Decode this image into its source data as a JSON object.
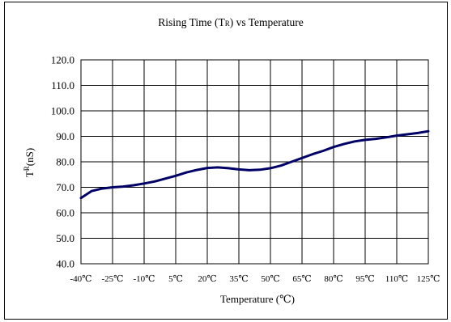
{
  "chart_data": {
    "type": "line",
    "title": "Rising Time (TR) vs Temperature",
    "title_parts": {
      "before": "Rising Time (T",
      "sub": "R",
      "after": ") vs Temperature"
    },
    "xlabel": "Temperature (℃)",
    "ylabel": "TR(nS)",
    "ylabel_parts": {
      "before": "T",
      "sup": "R",
      "after": "(nS)"
    },
    "x_categories": [
      "-40℃",
      "-25℃",
      "-10℃",
      "5℃",
      "20℃",
      "35℃",
      "50℃",
      "65℃",
      "80℃",
      "95℃",
      "110℃",
      "125℃"
    ],
    "xlim": [
      -40,
      125
    ],
    "ylim": [
      40,
      120
    ],
    "y_ticks": [
      "40.0",
      "50.0",
      "60.0",
      "70.0",
      "80.0",
      "90.0",
      "100.0",
      "110.0",
      "120.0"
    ],
    "grid": true,
    "series": [
      {
        "color": "#000066",
        "x": [
          -40,
          -35,
          -30,
          -25,
          -20,
          -15,
          -10,
          -5,
          0,
          5,
          10,
          15,
          20,
          25,
          30,
          35,
          40,
          45,
          50,
          55,
          60,
          65,
          70,
          75,
          80,
          85,
          90,
          95,
          100,
          105,
          110,
          115,
          120,
          125
        ],
        "y": [
          65.8,
          68.5,
          69.5,
          70.0,
          70.3,
          70.8,
          71.5,
          72.3,
          73.4,
          74.5,
          75.8,
          76.8,
          77.6,
          77.8,
          77.5,
          77.0,
          76.7,
          76.9,
          77.5,
          78.5,
          80.0,
          81.5,
          83.0,
          84.3,
          85.8,
          87.0,
          88.0,
          88.6,
          89.0,
          89.6,
          90.3,
          90.8,
          91.3,
          92.0
        ]
      }
    ]
  }
}
